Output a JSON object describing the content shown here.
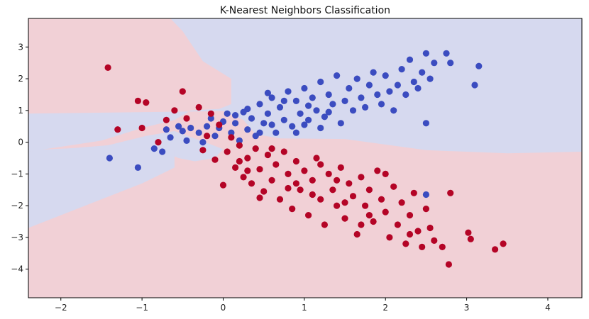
{
  "chart_data": {
    "type": "scatter",
    "title": "K-Nearest Neighbors Classification",
    "xlabel": "",
    "ylabel": "",
    "xlim": [
      -2.4,
      4.42
    ],
    "ylim": [
      -4.9,
      3.9
    ],
    "xticks": [
      -2,
      -1,
      0,
      1,
      2,
      3,
      4
    ],
    "xtick_labels": [
      "−2",
      "−1",
      "0",
      "1",
      "2",
      "3",
      "4"
    ],
    "yticks": [
      -4,
      -3,
      -2,
      -1,
      0,
      1,
      2,
      3
    ],
    "ytick_labels": [
      "−4",
      "−3",
      "−2",
      "−1",
      "0",
      "1",
      "2",
      "3"
    ],
    "grid": false,
    "legend": "none",
    "colors": {
      "class_blue": "#3b4cc0",
      "class_red": "#b40426",
      "region_blue": "#d6d9ef",
      "region_red": "#f1d0d6"
    },
    "decision_regions": {
      "blue": [
        [
          [
            -2.4,
            0.9
          ],
          [
            0.0,
            0.98
          ],
          [
            0.25,
            0.7
          ],
          [
            0.4,
            0.25
          ],
          [
            0.7,
            0.12
          ],
          [
            1.5,
            0.1
          ],
          [
            2.5,
            -0.25
          ],
          [
            3.5,
            -0.35
          ],
          [
            4.42,
            -0.3
          ],
          [
            4.42,
            3.9
          ],
          [
            -0.65,
            3.9
          ],
          [
            -0.5,
            3.5
          ],
          [
            -0.25,
            2.55
          ],
          [
            0.1,
            2.0
          ],
          [
            0.1,
            1.2
          ],
          [
            -0.05,
            1.05
          ],
          [
            -0.4,
            1.0
          ],
          [
            -0.6,
            0.7
          ],
          [
            -1.0,
            0.45
          ],
          [
            -1.5,
            0.05
          ],
          [
            -2.4,
            -0.3
          ]
        ],
        [
          [
            -2.4,
            -0.3
          ],
          [
            -1.5,
            -0.25
          ],
          [
            -1.1,
            -0.2
          ],
          [
            -0.8,
            -0.22
          ],
          [
            -0.55,
            -0.5
          ],
          [
            -0.35,
            -0.6
          ],
          [
            -0.1,
            -0.5
          ],
          [
            0.0,
            -0.22
          ],
          [
            -0.2,
            -0.02
          ],
          [
            -0.6,
            0.35
          ],
          [
            -0.95,
            0.2
          ],
          [
            -1.5,
            -0.15
          ],
          [
            -2.4,
            -0.25
          ]
        ],
        [
          [
            -2.4,
            -0.3
          ],
          [
            -1.2,
            -0.05
          ],
          [
            -0.85,
            0.0
          ],
          [
            -0.6,
            -0.25
          ],
          [
            -0.6,
            -0.8
          ],
          [
            -1.0,
            -1.3
          ],
          [
            -2.4,
            -2.7
          ]
        ]
      ]
    },
    "series": [
      {
        "name": "",
        "color": "#3b4cc0",
        "points": [
          [
            -1.4,
            -0.5
          ],
          [
            -1.05,
            -0.8
          ],
          [
            -0.85,
            -0.2
          ],
          [
            -0.75,
            -0.3
          ],
          [
            -0.7,
            0.4
          ],
          [
            -0.65,
            0.15
          ],
          [
            -0.55,
            0.5
          ],
          [
            -0.5,
            0.35
          ],
          [
            -0.45,
            0.05
          ],
          [
            -0.4,
            0.45
          ],
          [
            -0.3,
            0.3
          ],
          [
            -0.25,
            0.0
          ],
          [
            -0.2,
            0.5
          ],
          [
            -0.15,
            0.75
          ],
          [
            -0.1,
            0.2
          ],
          [
            -0.05,
            0.45
          ],
          [
            0.05,
            0.9
          ],
          [
            0.1,
            0.3
          ],
          [
            0.15,
            0.6
          ],
          [
            0.2,
            0.05
          ],
          [
            0.25,
            0.95
          ],
          [
            0.3,
            0.4
          ],
          [
            0.35,
            0.75
          ],
          [
            0.4,
            0.2
          ],
          [
            0.45,
            1.2
          ],
          [
            0.5,
            0.6
          ],
          [
            0.55,
            0.9
          ],
          [
            0.6,
            1.4
          ],
          [
            0.65,
            0.3
          ],
          [
            0.7,
            1.1
          ],
          [
            0.75,
            0.7
          ],
          [
            0.8,
            1.6
          ],
          [
            0.85,
            0.5
          ],
          [
            0.9,
            1.3
          ],
          [
            0.95,
            0.9
          ],
          [
            1.0,
            1.7
          ],
          [
            1.05,
            0.7
          ],
          [
            1.1,
            1.4
          ],
          [
            1.15,
            1.0
          ],
          [
            1.2,
            1.9
          ],
          [
            1.25,
            0.8
          ],
          [
            1.3,
            1.5
          ],
          [
            1.35,
            1.2
          ],
          [
            1.4,
            2.1
          ],
          [
            1.45,
            0.6
          ],
          [
            1.5,
            1.3
          ],
          [
            1.55,
            1.7
          ],
          [
            1.6,
            1.0
          ],
          [
            1.65,
            2.0
          ],
          [
            1.7,
            1.4
          ],
          [
            1.75,
            1.1
          ],
          [
            1.8,
            1.8
          ],
          [
            1.85,
            2.2
          ],
          [
            1.9,
            1.5
          ],
          [
            1.95,
            1.2
          ],
          [
            2.0,
            2.1
          ],
          [
            2.05,
            1.6
          ],
          [
            2.1,
            1.0
          ],
          [
            2.15,
            1.8
          ],
          [
            2.2,
            2.3
          ],
          [
            2.25,
            1.5
          ],
          [
            2.3,
            2.6
          ],
          [
            2.35,
            1.9
          ],
          [
            2.4,
            1.7
          ],
          [
            2.45,
            2.2
          ],
          [
            2.5,
            2.8
          ],
          [
            2.55,
            2.0
          ],
          [
            2.6,
            2.5
          ],
          [
            2.75,
            2.8
          ],
          [
            2.8,
            2.5
          ],
          [
            3.1,
            1.8
          ],
          [
            3.15,
            2.4
          ],
          [
            2.5,
            0.6
          ],
          [
            2.5,
            -1.65
          ],
          [
            0.0,
            0.65
          ],
          [
            0.3,
            1.05
          ],
          [
            0.6,
            0.55
          ],
          [
            0.9,
            0.3
          ],
          [
            1.2,
            0.45
          ],
          [
            0.45,
            0.3
          ],
          [
            0.75,
            1.3
          ],
          [
            1.05,
            1.15
          ],
          [
            1.3,
            0.95
          ],
          [
            0.15,
            0.85
          ],
          [
            0.55,
            1.55
          ],
          [
            1.0,
            0.55
          ]
        ]
      },
      {
        "name": "",
        "color": "#b40426",
        "points": [
          [
            -1.42,
            2.35
          ],
          [
            -1.3,
            0.4
          ],
          [
            -1.05,
            1.3
          ],
          [
            -0.95,
            1.25
          ],
          [
            -1.0,
            0.45
          ],
          [
            -0.8,
            0.0
          ],
          [
            -0.7,
            0.7
          ],
          [
            -0.6,
            1.0
          ],
          [
            -0.5,
            1.6
          ],
          [
            -0.45,
            0.75
          ],
          [
            -0.3,
            1.1
          ],
          [
            -0.25,
            -0.25
          ],
          [
            -0.2,
            0.2
          ],
          [
            -0.15,
            0.9
          ],
          [
            -0.1,
            -0.55
          ],
          [
            -0.05,
            0.55
          ],
          [
            0.0,
            -1.35
          ],
          [
            0.05,
            -0.3
          ],
          [
            0.1,
            0.15
          ],
          [
            0.15,
            -0.8
          ],
          [
            0.2,
            -0.1
          ],
          [
            0.25,
            -1.1
          ],
          [
            0.3,
            -0.5
          ],
          [
            0.35,
            -1.3
          ],
          [
            0.4,
            -0.2
          ],
          [
            0.45,
            -0.85
          ],
          [
            0.5,
            -1.55
          ],
          [
            0.55,
            -0.4
          ],
          [
            0.6,
            -1.2
          ],
          [
            0.65,
            -0.7
          ],
          [
            0.7,
            -1.8
          ],
          [
            0.75,
            -0.3
          ],
          [
            0.8,
            -1.0
          ],
          [
            0.85,
            -2.1
          ],
          [
            0.9,
            -0.6
          ],
          [
            0.95,
            -1.5
          ],
          [
            1.0,
            -0.9
          ],
          [
            1.05,
            -2.3
          ],
          [
            1.1,
            -1.2
          ],
          [
            1.15,
            -0.5
          ],
          [
            1.2,
            -1.8
          ],
          [
            1.25,
            -2.6
          ],
          [
            1.3,
            -1.0
          ],
          [
            1.35,
            -1.5
          ],
          [
            1.4,
            -2.0
          ],
          [
            1.45,
            -0.8
          ],
          [
            1.5,
            -2.4
          ],
          [
            1.55,
            -1.3
          ],
          [
            1.6,
            -1.7
          ],
          [
            1.65,
            -2.9
          ],
          [
            1.7,
            -1.1
          ],
          [
            1.75,
            -2.0
          ],
          [
            1.8,
            -1.5
          ],
          [
            1.85,
            -2.5
          ],
          [
            1.9,
            -0.9
          ],
          [
            1.95,
            -1.8
          ],
          [
            2.0,
            -2.2
          ],
          [
            2.05,
            -3.0
          ],
          [
            2.1,
            -1.4
          ],
          [
            2.15,
            -2.6
          ],
          [
            2.2,
            -1.9
          ],
          [
            2.25,
            -3.2
          ],
          [
            2.3,
            -2.3
          ],
          [
            2.35,
            -1.6
          ],
          [
            2.4,
            -2.8
          ],
          [
            2.45,
            -3.3
          ],
          [
            2.5,
            -2.1
          ],
          [
            2.55,
            -2.7
          ],
          [
            2.6,
            -3.1
          ],
          [
            2.7,
            -3.3
          ],
          [
            2.78,
            -3.85
          ],
          [
            2.8,
            -1.6
          ],
          [
            3.02,
            -2.85
          ],
          [
            3.05,
            -3.05
          ],
          [
            3.35,
            -3.38
          ],
          [
            3.45,
            -3.2
          ],
          [
            0.3,
            -0.9
          ],
          [
            0.6,
            -0.2
          ],
          [
            0.9,
            -1.3
          ],
          [
            1.2,
            -0.7
          ],
          [
            1.5,
            -1.9
          ],
          [
            1.8,
            -2.3
          ],
          [
            0.2,
            -0.6
          ],
          [
            0.45,
            -1.75
          ],
          [
            0.8,
            -1.45
          ],
          [
            1.1,
            -1.65
          ],
          [
            1.4,
            -1.2
          ],
          [
            1.7,
            -2.6
          ],
          [
            2.0,
            -1.0
          ],
          [
            2.3,
            -2.9
          ]
        ]
      }
    ]
  }
}
